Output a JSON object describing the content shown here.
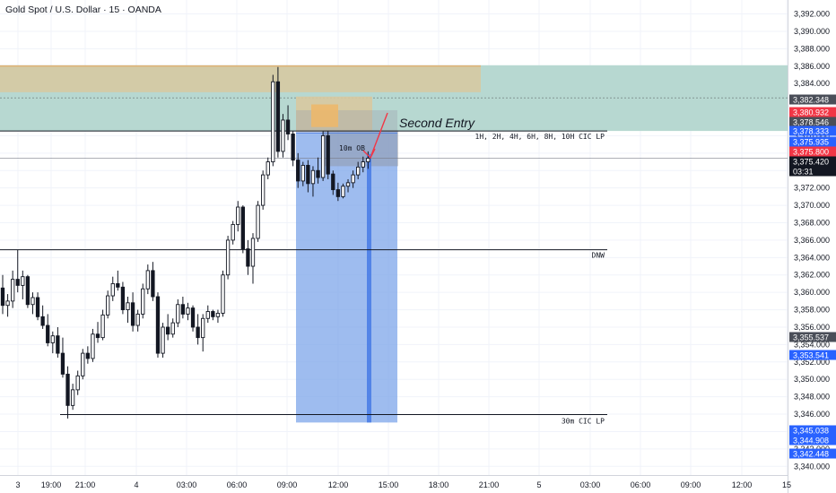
{
  "header": {
    "title": "Gold Spot / U.S. Dollar · 15 · OANDA"
  },
  "colors": {
    "background": "#ffffff",
    "zone_teal": "#b3d6cf",
    "zone_tan": "#d8c9a0",
    "position_blue": "#7ea6ea",
    "candle_body": "#131722",
    "candle_hollow": "#ffffff",
    "arrow_red": "#f23645",
    "tag_blue": "#2962ff",
    "tag_red": "#f23645",
    "tag_dark": "#131722",
    "tag_gray": "#4a4e58"
  },
  "chart_data": {
    "type": "candlestick",
    "title": "Gold Spot / U.S. Dollar · 15 · OANDA",
    "y_axis": {
      "ylim": [
        3339.0,
        3393.6
      ],
      "ticks": [
        "3,340.000",
        "3,342.000",
        "3,344.000",
        "3,346.000",
        "3,348.000",
        "3,350.000",
        "3,352.000",
        "3,354.000",
        "3,356.000",
        "3,358.000",
        "3,360.000",
        "3,362.000",
        "3,364.000",
        "3,366.000",
        "3,368.000",
        "3,370.000",
        "3,372.000",
        "3,374.000",
        "3,376.000",
        "3,378.000",
        "3,380.000",
        "3,382.000",
        "3,384.000",
        "3,386.000",
        "3,388.000",
        "3,390.000",
        "3,392.000"
      ],
      "tick_values": [
        3340,
        3342,
        3344,
        3346,
        3348,
        3350,
        3352,
        3354,
        3356,
        3358,
        3360,
        3362,
        3364,
        3366,
        3368,
        3370,
        3372,
        3374,
        3376,
        3378,
        3380,
        3382,
        3384,
        3386,
        3388,
        3390,
        3392
      ],
      "position": "right"
    },
    "x_axis": {
      "ticks": [
        "3",
        "19:00",
        "21:00",
        "4",
        "03:00",
        "06:00",
        "09:00",
        "12:00",
        "15:00",
        "18:00",
        "21:00",
        "5",
        "03:00",
        "06:00",
        "09:00",
        "12:00",
        "15"
      ]
    },
    "candles_ohlc": [
      [
        3360.5,
        3362.0,
        3357.5,
        3358.5
      ],
      [
        3358.5,
        3359.8,
        3357.2,
        3359.0
      ],
      [
        3359.0,
        3362.5,
        3358.2,
        3361.5
      ],
      [
        3361.5,
        3364.9,
        3360.0,
        3360.8
      ],
      [
        3360.8,
        3362.5,
        3359.2,
        3361.8
      ],
      [
        3361.8,
        3362.0,
        3358.2,
        3358.6
      ],
      [
        3358.6,
        3360.0,
        3357.5,
        3359.4
      ],
      [
        3359.4,
        3360.0,
        3356.8,
        3357.2
      ],
      [
        3357.2,
        3358.5,
        3355.8,
        3356.2
      ],
      [
        3356.2,
        3357.5,
        3353.8,
        3354.2
      ],
      [
        3354.2,
        3355.5,
        3353.0,
        3355.0
      ],
      [
        3355.0,
        3356.0,
        3352.5,
        3353.0
      ],
      [
        3353.0,
        3354.8,
        3350.2,
        3350.6
      ],
      [
        3350.6,
        3351.5,
        3345.5,
        3347.0
      ],
      [
        3347.0,
        3349.5,
        3346.5,
        3348.8
      ],
      [
        3348.8,
        3351.0,
        3348.2,
        3350.4
      ],
      [
        3350.4,
        3353.5,
        3350.0,
        3353.0
      ],
      [
        3353.0,
        3353.8,
        3351.8,
        3352.4
      ],
      [
        3352.4,
        3355.8,
        3352.0,
        3355.2
      ],
      [
        3355.2,
        3356.6,
        3354.2,
        3354.8
      ],
      [
        3354.8,
        3358.0,
        3354.5,
        3357.4
      ],
      [
        3357.4,
        3360.2,
        3357.0,
        3359.6
      ],
      [
        3359.6,
        3361.8,
        3359.0,
        3361.0
      ],
      [
        3361.0,
        3362.5,
        3360.2,
        3360.6
      ],
      [
        3360.6,
        3361.2,
        3357.5,
        3358.0
      ],
      [
        3358.0,
        3359.5,
        3356.5,
        3358.8
      ],
      [
        3358.8,
        3360.0,
        3355.5,
        3356.2
      ],
      [
        3356.2,
        3358.0,
        3355.5,
        3357.5
      ],
      [
        3357.5,
        3361.0,
        3357.0,
        3360.4
      ],
      [
        3360.4,
        3363.2,
        3359.8,
        3362.5
      ],
      [
        3362.5,
        3363.5,
        3359.0,
        3359.5
      ],
      [
        3359.5,
        3360.0,
        3352.5,
        3353.0
      ],
      [
        3353.0,
        3356.5,
        3352.5,
        3356.0
      ],
      [
        3356.0,
        3357.5,
        3354.5,
        3355.2
      ],
      [
        3355.2,
        3357.0,
        3354.8,
        3356.5
      ],
      [
        3356.5,
        3359.2,
        3356.0,
        3358.6
      ],
      [
        3358.6,
        3359.5,
        3357.0,
        3357.5
      ],
      [
        3357.5,
        3358.8,
        3356.8,
        3358.2
      ],
      [
        3358.2,
        3358.5,
        3355.5,
        3356.0
      ],
      [
        3356.0,
        3357.5,
        3354.0,
        3354.8
      ],
      [
        3354.8,
        3357.5,
        3353.2,
        3357.0
      ],
      [
        3357.0,
        3358.5,
        3356.5,
        3357.8
      ],
      [
        3357.8,
        3358.0,
        3356.8,
        3357.2
      ],
      [
        3357.2,
        3358.0,
        3356.5,
        3357.6
      ],
      [
        3357.6,
        3362.5,
        3357.2,
        3362.0
      ],
      [
        3362.0,
        3366.5,
        3361.5,
        3366.0
      ],
      [
        3366.0,
        3368.2,
        3365.5,
        3367.8
      ],
      [
        3367.8,
        3370.5,
        3367.0,
        3369.8
      ],
      [
        3369.8,
        3370.0,
        3364.5,
        3365.0
      ],
      [
        3365.0,
        3366.0,
        3362.0,
        3363.0
      ],
      [
        3363.0,
        3366.8,
        3361.0,
        3366.2
      ],
      [
        3366.2,
        3370.5,
        3365.8,
        3370.0
      ],
      [
        3370.0,
        3374.0,
        3369.5,
        3373.5
      ],
      [
        3373.5,
        3375.5,
        3373.0,
        3375.0
      ],
      [
        3375.0,
        3385.0,
        3374.5,
        3384.2
      ],
      [
        3384.2,
        3385.9,
        3375.5,
        3376.2
      ],
      [
        3376.2,
        3380.5,
        3375.5,
        3379.8
      ],
      [
        3379.8,
        3381.5,
        3377.5,
        3378.2
      ],
      [
        3378.2,
        3378.5,
        3374.5,
        3375.2
      ],
      [
        3375.2,
        3376.0,
        3372.0,
        3372.8
      ],
      [
        3372.8,
        3375.0,
        3372.2,
        3374.6
      ],
      [
        3374.6,
        3375.2,
        3371.5,
        3372.5
      ],
      [
        3372.5,
        3374.5,
        3371.0,
        3374.0
      ],
      [
        3374.0,
        3375.5,
        3372.5,
        3373.2
      ],
      [
        3373.2,
        3378.5,
        3372.8,
        3378.0
      ],
      [
        3378.0,
        3378.5,
        3373.0,
        3373.6
      ],
      [
        3373.6,
        3374.0,
        3371.2,
        3371.8
      ],
      [
        3371.8,
        3372.6,
        3370.5,
        3371.0
      ],
      [
        3371.0,
        3372.5,
        3370.8,
        3372.2
      ],
      [
        3372.2,
        3373.0,
        3371.5,
        3372.6
      ],
      [
        3372.6,
        3374.0,
        3372.0,
        3373.5
      ],
      [
        3373.5,
        3375.0,
        3373.0,
        3374.4
      ],
      [
        3374.4,
        3375.6,
        3373.8,
        3375.0
      ],
      [
        3375.0,
        3376.2,
        3374.2,
        3375.42
      ]
    ],
    "zones": [
      {
        "y_range": [
          3378.55,
          3386.1
        ],
        "color": "teal",
        "extends": "right-edge"
      },
      {
        "y_range": [
          3383.0,
          3386.1
        ],
        "color": "tan",
        "extends": "to-21:00"
      },
      {
        "y_range": [
          3378.5,
          3382.5
        ],
        "color": "tan",
        "extends": "position-box"
      }
    ],
    "position": {
      "entry": 3378.33,
      "target": 3345.04,
      "stop": 3380.93
    },
    "levels": [
      {
        "label": "1H, 2H, 4H, 6H, 8H, 10H CIC LP",
        "value": 3378.55
      },
      {
        "label": "DNW",
        "value": 3364.9
      },
      {
        "label": "30m CIC LP",
        "value": 3345.95
      }
    ],
    "annotations": [
      {
        "text": "Second Entry"
      },
      {
        "text": "10m OB"
      }
    ],
    "price_tags": [
      {
        "text": "3,382.348",
        "style": "gray",
        "value": 3382.348
      },
      {
        "text": "3,380.932",
        "style": "red",
        "value": 3380.932
      },
      {
        "text": "3,378.546",
        "style": "gray",
        "value": 3378.546
      },
      {
        "text": "3,378.333",
        "style": "blue",
        "value": 3378.333
      },
      {
        "text": "3,375.935",
        "style": "blue",
        "value": 3375.935
      },
      {
        "text": "3,375.800",
        "style": "red",
        "value": 3375.8
      },
      {
        "text": "3,375.420",
        "style": "dark",
        "value": 3375.42,
        "sub": "03:31"
      },
      {
        "text": "3,355.537",
        "style": "gray",
        "value": 3355.537
      },
      {
        "text": "3,353.541",
        "style": "blue",
        "value": 3353.541
      },
      {
        "text": "3,345.038",
        "style": "blue",
        "value": 3345.038
      },
      {
        "text": "3,344.908",
        "style": "blue",
        "value": 3344.908
      },
      {
        "text": "3,342.448",
        "style": "blue",
        "value": 3342.448
      }
    ]
  }
}
